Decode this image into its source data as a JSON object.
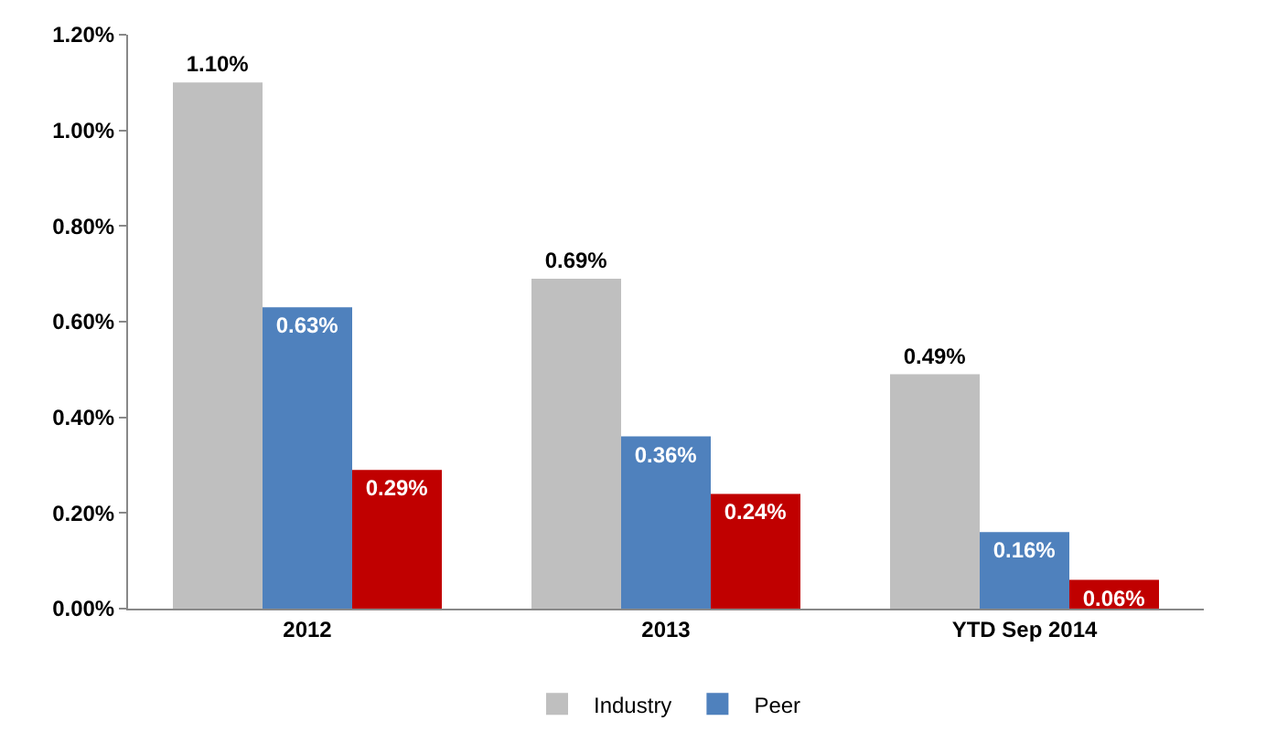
{
  "chart_data": {
    "type": "bar",
    "categories": [
      "2012",
      "2013",
      "YTD Sep 2014"
    ],
    "series": [
      {
        "name": "Industry",
        "color": "#bfbfbf",
        "values": [
          1.1,
          0.69,
          0.49
        ],
        "value_labels": [
          "1.10%",
          "0.69%",
          "0.49%"
        ]
      },
      {
        "name": "Peer",
        "color": "#4f81bd",
        "values": [
          0.63,
          0.36,
          0.16
        ],
        "value_labels": [
          "0.63%",
          "0.36%",
          "0.16%"
        ]
      },
      {
        "color": "#c00000",
        "values": [
          0.29,
          0.24,
          0.06
        ],
        "value_labels": [
          "0.29%",
          "0.24%",
          "0.06%"
        ]
      }
    ],
    "ylim": [
      0,
      1.2
    ],
    "yticks": [
      {
        "value": 0,
        "label": "0.00%"
      },
      {
        "value": 0.2,
        "label": "0.20%"
      },
      {
        "value": 0.4,
        "label": "0.40%"
      },
      {
        "value": 0.6,
        "label": "0.60%"
      },
      {
        "value": 0.8,
        "label": "0.80%"
      },
      {
        "value": 1.0,
        "label": "1.00%"
      },
      {
        "value": 1.2,
        "label": "1.20%"
      }
    ],
    "legend": "bottom"
  }
}
